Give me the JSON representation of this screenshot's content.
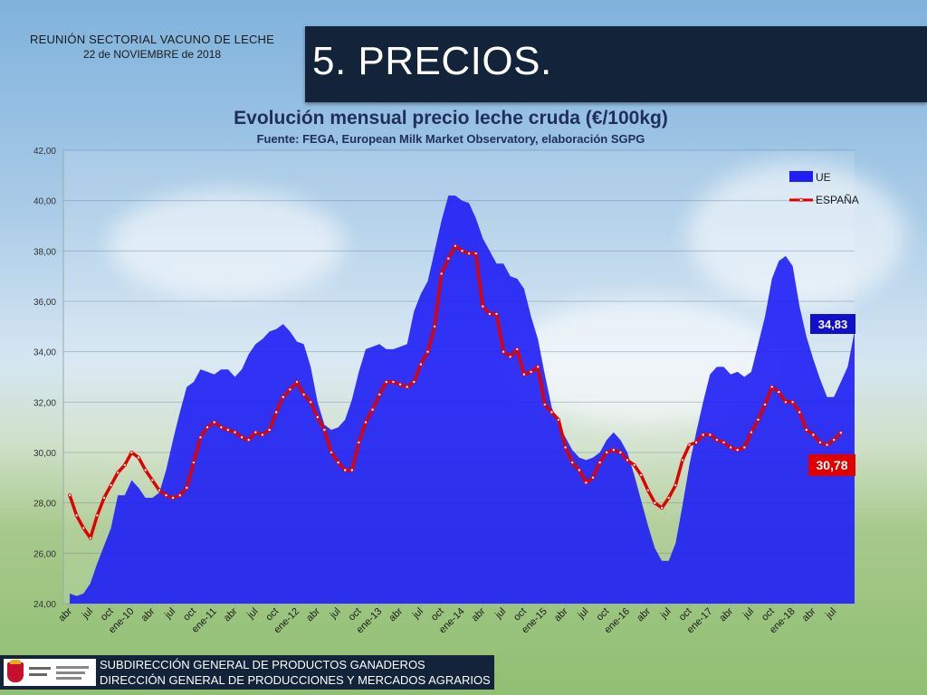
{
  "header": {
    "meeting": "REUNIÓN SECTORIAL VACUNO DE LECHE",
    "date": "22 de NOVIEMBRE de 2018",
    "section_title": "5. PRECIOS."
  },
  "footer": {
    "line1": "SUBDIRECCIÓN GENERAL DE PRODUCTOS GANADEROS",
    "line2": "DIRECCIÓN GENERAL DE PRODUCCIONES Y MERCADOS AGRARIOS"
  },
  "colors": {
    "ue": "#1e1ef5",
    "espana": "#e00000",
    "label_ue_bg": "#1010c8",
    "label_es_bg": "#e00000"
  },
  "chart_data": {
    "type": "area",
    "title": "Evolución mensual precio leche cruda (€/100kg)",
    "subtitle": "Fuente: FEGA, European Milk Market Observatory,  elaboración SGPG",
    "ylim": [
      24,
      42
    ],
    "yticks": [
      "24,00",
      "26,00",
      "28,00",
      "30,00",
      "32,00",
      "34,00",
      "36,00",
      "38,00",
      "40,00",
      "42,00"
    ],
    "grid": true,
    "legend_position": "top-right",
    "start": "2009-04",
    "x_tick_labels": [
      "abr",
      "jul",
      "oct",
      "ene-10",
      "abr",
      "jul",
      "oct",
      "ene-11",
      "abr",
      "jul",
      "oct",
      "ene-12",
      "abr",
      "jul",
      "oct",
      "ene-13",
      "abr",
      "jul",
      "oct",
      "ene-14",
      "abr",
      "jul",
      "oct",
      "ene-15",
      "abr",
      "jul",
      "oct",
      "ene-16",
      "abr",
      "jul",
      "oct",
      "ene-17",
      "abr",
      "jul",
      "oct",
      "ene-18",
      "abr",
      "jul"
    ],
    "series": [
      {
        "name": "UE",
        "kind": "area",
        "values": [
          24.4,
          24.3,
          24.4,
          24.8,
          25.6,
          26.3,
          27.0,
          28.3,
          28.3,
          28.9,
          28.6,
          28.2,
          28.2,
          28.4,
          29.3,
          30.5,
          31.6,
          32.6,
          32.8,
          33.3,
          33.2,
          33.1,
          33.3,
          33.3,
          33.0,
          33.3,
          33.9,
          34.3,
          34.5,
          34.8,
          34.9,
          35.1,
          34.8,
          34.4,
          34.3,
          33.4,
          32.0,
          31.1,
          30.9,
          31.0,
          31.3,
          32.1,
          33.2,
          34.1,
          34.2,
          34.3,
          34.1,
          34.1,
          34.2,
          34.3,
          35.6,
          36.3,
          36.8,
          38.0,
          39.2,
          40.2,
          40.2,
          40.0,
          39.9,
          39.3,
          38.5,
          38.0,
          37.5,
          37.5,
          37.0,
          36.9,
          36.5,
          35.4,
          34.5,
          33.1,
          31.8,
          31.1,
          30.6,
          30.1,
          29.8,
          29.7,
          29.8,
          30.0,
          30.5,
          30.8,
          30.5,
          30.0,
          29.1,
          28.1,
          27.1,
          26.2,
          25.7,
          25.7,
          26.4,
          27.9,
          29.5,
          30.8,
          32.0,
          33.1,
          33.4,
          33.4,
          33.1,
          33.2,
          33.0,
          33.2,
          34.3,
          35.4,
          36.9,
          37.6,
          37.8,
          37.4,
          35.8,
          34.6,
          33.7,
          32.9,
          32.2,
          32.2,
          32.8,
          33.4,
          34.83
        ]
      },
      {
        "name": "ESPAÑA",
        "kind": "line",
        "values": [
          28.3,
          27.5,
          27.0,
          26.6,
          27.5,
          28.2,
          28.7,
          29.2,
          29.5,
          30.0,
          29.8,
          29.3,
          28.9,
          28.5,
          28.3,
          28.2,
          28.3,
          28.6,
          29.6,
          30.6,
          31.0,
          31.2,
          31.0,
          30.9,
          30.8,
          30.6,
          30.5,
          30.8,
          30.7,
          30.9,
          31.6,
          32.2,
          32.5,
          32.8,
          32.3,
          32.0,
          31.4,
          30.9,
          30.0,
          29.6,
          29.3,
          29.3,
          30.4,
          31.2,
          31.7,
          32.3,
          32.8,
          32.8,
          32.7,
          32.6,
          32.8,
          33.5,
          34.0,
          35.0,
          37.1,
          37.7,
          38.2,
          38.0,
          37.9,
          37.9,
          35.8,
          35.5,
          35.5,
          34.0,
          33.8,
          34.1,
          33.1,
          33.2,
          33.4,
          31.9,
          31.6,
          31.3,
          30.2,
          29.6,
          29.3,
          28.8,
          29.0,
          29.6,
          30.0,
          30.1,
          30.0,
          29.7,
          29.5,
          29.1,
          28.5,
          28.0,
          27.8,
          28.2,
          28.7,
          29.7,
          30.3,
          30.4,
          30.7,
          30.7,
          30.5,
          30.4,
          30.2,
          30.1,
          30.2,
          30.8,
          31.3,
          31.9,
          32.6,
          32.4,
          32.0,
          32.0,
          31.6,
          30.9,
          30.7,
          30.4,
          30.3,
          30.5,
          30.78
        ]
      }
    ],
    "end_labels": {
      "UE": "34,83",
      "ESPAÑA": "30,78"
    }
  }
}
